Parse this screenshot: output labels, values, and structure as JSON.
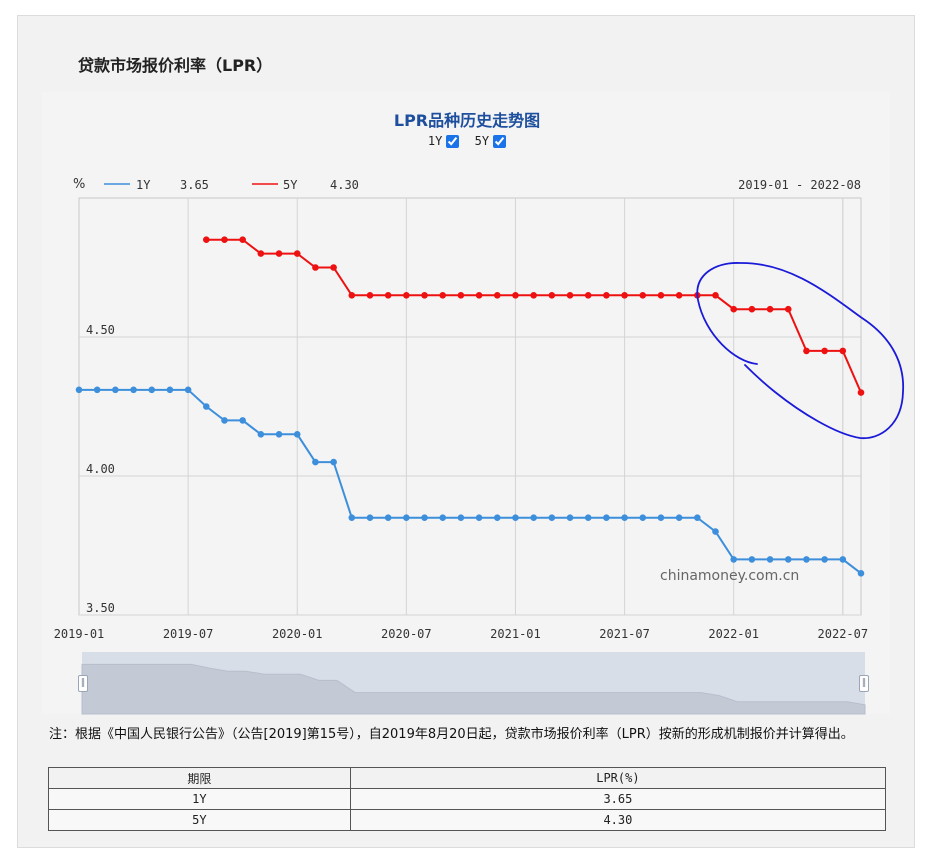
{
  "page": {
    "title": "贷款市场报价利率（LPR）",
    "note": "注：根据《中国人民银行公告》（公告[2019]第15号），自2019年8月20日起，贷款市场报价利率（LPR）按新的形成机制报价并计算得出。"
  },
  "chart_toggles": [
    {
      "label": "1Y",
      "checked": true
    },
    {
      "label": "5Y",
      "checked": true
    }
  ],
  "chart_data": {
    "type": "line",
    "title": "LPR品种历史走势图",
    "ylabel": "%",
    "date_range": "2019-01 - 2022-08",
    "watermark": "chinamoney.com.cn",
    "ylim": [
      3.5,
      5.0
    ],
    "yticks": [
      "3.50",
      "4.00",
      "4.50"
    ],
    "x_ticks": [
      "2019-01",
      "2019-07",
      "2020-01",
      "2020-07",
      "2021-01",
      "2021-07",
      "2022-01",
      "2022-07"
    ],
    "grid": true,
    "legend_position": "top-left",
    "series": [
      {
        "name": "1Y",
        "latest": "3.65",
        "color": "#3d8fdc",
        "x": [
          "2019-01",
          "2019-02",
          "2019-03",
          "2019-04",
          "2019-05",
          "2019-06",
          "2019-07",
          "2019-08",
          "2019-09",
          "2019-10",
          "2019-11",
          "2019-12",
          "2020-01",
          "2020-02",
          "2020-03",
          "2020-04",
          "2020-05",
          "2020-06",
          "2020-07",
          "2020-08",
          "2020-09",
          "2020-10",
          "2020-11",
          "2020-12",
          "2021-01",
          "2021-02",
          "2021-03",
          "2021-04",
          "2021-05",
          "2021-06",
          "2021-07",
          "2021-08",
          "2021-09",
          "2021-10",
          "2021-11",
          "2021-12",
          "2022-01",
          "2022-02",
          "2022-03",
          "2022-04",
          "2022-05",
          "2022-06",
          "2022-07",
          "2022-08"
        ],
        "values": [
          4.31,
          4.31,
          4.31,
          4.31,
          4.31,
          4.31,
          4.31,
          4.25,
          4.2,
          4.2,
          4.15,
          4.15,
          4.15,
          4.05,
          4.05,
          3.85,
          3.85,
          3.85,
          3.85,
          3.85,
          3.85,
          3.85,
          3.85,
          3.85,
          3.85,
          3.85,
          3.85,
          3.85,
          3.85,
          3.85,
          3.85,
          3.85,
          3.85,
          3.85,
          3.85,
          3.8,
          3.7,
          3.7,
          3.7,
          3.7,
          3.7,
          3.7,
          3.7,
          3.65
        ]
      },
      {
        "name": "5Y",
        "latest": "4.30",
        "color": "#ee1111",
        "x": [
          "2019-08",
          "2019-09",
          "2019-10",
          "2019-11",
          "2019-12",
          "2020-01",
          "2020-02",
          "2020-03",
          "2020-04",
          "2020-05",
          "2020-06",
          "2020-07",
          "2020-08",
          "2020-09",
          "2020-10",
          "2020-11",
          "2020-12",
          "2021-01",
          "2021-02",
          "2021-03",
          "2021-04",
          "2021-05",
          "2021-06",
          "2021-07",
          "2021-08",
          "2021-09",
          "2021-10",
          "2021-11",
          "2021-12",
          "2022-01",
          "2022-02",
          "2022-03",
          "2022-04",
          "2022-05",
          "2022-06",
          "2022-07",
          "2022-08"
        ],
        "values": [
          4.85,
          4.85,
          4.85,
          4.8,
          4.8,
          4.8,
          4.75,
          4.75,
          4.65,
          4.65,
          4.65,
          4.65,
          4.65,
          4.65,
          4.65,
          4.65,
          4.65,
          4.65,
          4.65,
          4.65,
          4.65,
          4.65,
          4.65,
          4.65,
          4.65,
          4.65,
          4.65,
          4.65,
          4.65,
          4.6,
          4.6,
          4.6,
          4.6,
          4.45,
          4.45,
          4.45,
          4.3
        ]
      }
    ]
  },
  "table": {
    "headers": [
      "期限",
      "LPR(%)"
    ],
    "rows": [
      [
        "1Y",
        "3.65"
      ],
      [
        "5Y",
        "4.30"
      ]
    ]
  },
  "colors": {
    "title_blue": "#1d4f9e",
    "annotation_circle": "#1a1ad8"
  }
}
